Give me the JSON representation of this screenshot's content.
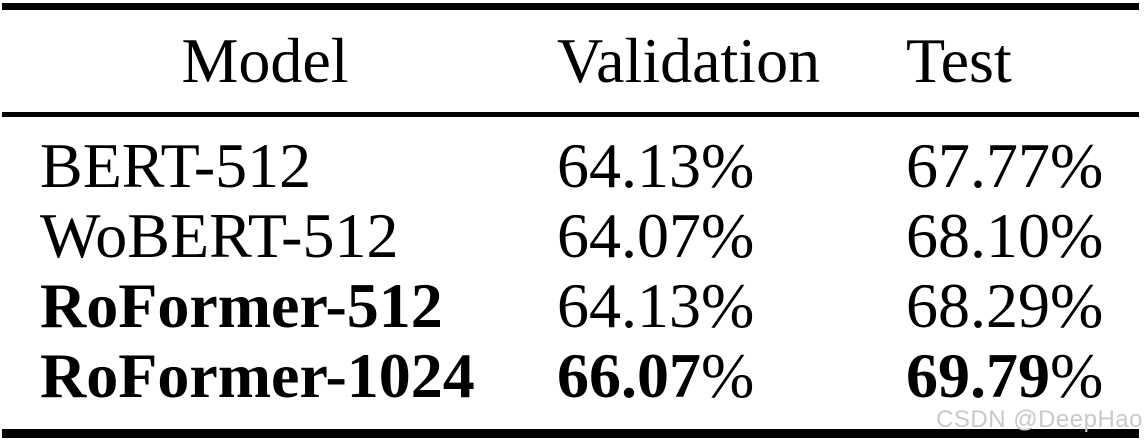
{
  "table": {
    "columns": [
      "Model",
      "Validation",
      "Test"
    ],
    "rows": [
      {
        "model": "BERT-512",
        "validation": "64.13%",
        "test": "67.77%",
        "bold_model": false,
        "bold_values": false
      },
      {
        "model": "WoBERT-512",
        "validation": "64.07%",
        "test": "68.10%",
        "bold_model": false,
        "bold_values": false
      },
      {
        "model": "RoFormer-512",
        "validation": "64.13%",
        "test": "68.29%",
        "bold_model": true,
        "bold_values": false
      },
      {
        "model": "RoFormer-1024",
        "validation": "66.07%",
        "test": "69.79%",
        "bold_model": true,
        "bold_values": true
      }
    ]
  },
  "watermark": {
    "text": "CSDN @DeepHao",
    "color": "#c9c9c9"
  },
  "colors": {
    "background": "#ffffff",
    "text": "#000000",
    "rule": "#000000"
  }
}
